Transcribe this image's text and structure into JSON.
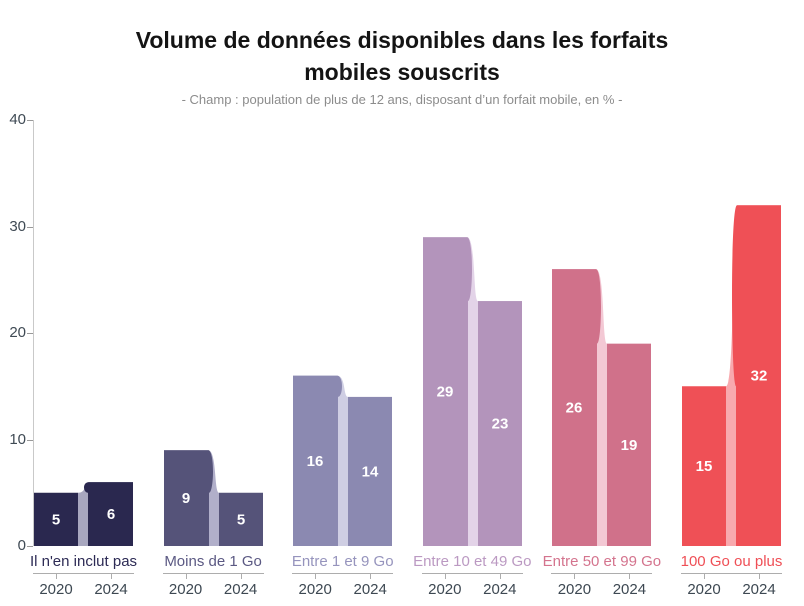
{
  "header": {
    "title": "Volume de données disponibles dans les forfaits mobiles souscrits",
    "subtitle": "- Champ : population de plus de 12 ans, disposant d’un forfait mobile, en % -"
  },
  "chart_data": {
    "type": "bar",
    "title": "Volume de données disponibles dans les forfaits mobiles souscrits",
    "subtitle": "- Champ : population de plus de 12 ans, disposant d’un forfait mobile, en % -",
    "categories": [
      "Il n'en inclut pas",
      "Moins de 1 Go",
      "Entre 1 et 9 Go",
      "Entre 10 et 49 Go",
      "Entre 50 et 99 Go",
      "100 Go ou plus"
    ],
    "series": [
      {
        "name": "2020",
        "values": [
          5,
          9,
          16,
          29,
          26,
          15
        ]
      },
      {
        "name": "2024",
        "values": [
          6,
          5,
          14,
          23,
          19,
          32
        ]
      }
    ],
    "unit": "%",
    "ylim": [
      0,
      40
    ],
    "yticks": [
      0,
      10,
      20,
      30,
      40
    ],
    "grid": false,
    "legend": "none",
    "value_labels": "inside-bars",
    "value_label_color": "#ffffff",
    "group_colors": [
      "#2a284f",
      "#555379",
      "#8b89b1",
      "#b394bb",
      "#d0718a",
      "#ef5056"
    ],
    "connector_colors": [
      "#a8a7bf",
      "#b1afca",
      "#cfcee3",
      "#e3d3e8",
      "#f3c8d4",
      "#f8a9ae"
    ],
    "category_label_colors": [
      "#2d2b55",
      "#5b5983",
      "#9694bd",
      "#bb99c2",
      "#d4748e",
      "#ef4f56"
    ],
    "axis_line_color": "#c9c9c9",
    "ytick_label_color": "#3f4a54",
    "year_label_color": "#3d4852"
  }
}
